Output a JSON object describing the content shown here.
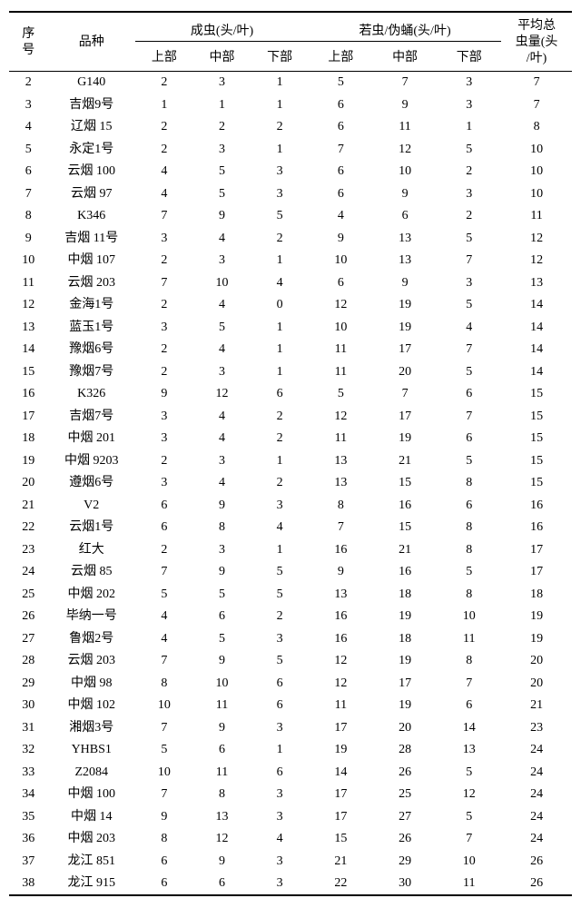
{
  "table": {
    "headers": {
      "idx": "序\n号",
      "variety": "品种",
      "group1": "成虫(头/叶)",
      "group2": "若虫/伪蛹(头/叶)",
      "avg": "平均总\n虫量(头\n/叶)",
      "sub_upper": "上部",
      "sub_mid": "中部",
      "sub_lower": "下部"
    },
    "rows": [
      {
        "i": "2",
        "v": "G140",
        "a1": "2",
        "a2": "3",
        "a3": "1",
        "b1": "5",
        "b2": "7",
        "b3": "3",
        "avg": "7"
      },
      {
        "i": "3",
        "v": "吉烟9号",
        "a1": "1",
        "a2": "1",
        "a3": "1",
        "b1": "6",
        "b2": "9",
        "b3": "3",
        "avg": "7"
      },
      {
        "i": "4",
        "v": "辽烟 15",
        "a1": "2",
        "a2": "2",
        "a3": "2",
        "b1": "6",
        "b2": "11",
        "b3": "1",
        "avg": "8"
      },
      {
        "i": "5",
        "v": "永定1号",
        "a1": "2",
        "a2": "3",
        "a3": "1",
        "b1": "7",
        "b2": "12",
        "b3": "5",
        "avg": "10"
      },
      {
        "i": "6",
        "v": "云烟 100",
        "a1": "4",
        "a2": "5",
        "a3": "3",
        "b1": "6",
        "b2": "10",
        "b3": "2",
        "avg": "10"
      },
      {
        "i": "7",
        "v": "云烟 97",
        "a1": "4",
        "a2": "5",
        "a3": "3",
        "b1": "6",
        "b2": "9",
        "b3": "3",
        "avg": "10"
      },
      {
        "i": "8",
        "v": "K346",
        "a1": "7",
        "a2": "9",
        "a3": "5",
        "b1": "4",
        "b2": "6",
        "b3": "2",
        "avg": "11"
      },
      {
        "i": "9",
        "v": "吉烟 11号",
        "a1": "3",
        "a2": "4",
        "a3": "2",
        "b1": "9",
        "b2": "13",
        "b3": "5",
        "avg": "12"
      },
      {
        "i": "10",
        "v": "中烟 107",
        "a1": "2",
        "a2": "3",
        "a3": "1",
        "b1": "10",
        "b2": "13",
        "b3": "7",
        "avg": "12"
      },
      {
        "i": "11",
        "v": "云烟 203",
        "a1": "7",
        "a2": "10",
        "a3": "4",
        "b1": "6",
        "b2": "9",
        "b3": "3",
        "avg": "13"
      },
      {
        "i": "12",
        "v": "金海1号",
        "a1": "2",
        "a2": "4",
        "a3": "0",
        "b1": "12",
        "b2": "19",
        "b3": "5",
        "avg": "14"
      },
      {
        "i": "13",
        "v": "蓝玉1号",
        "a1": "3",
        "a2": "5",
        "a3": "1",
        "b1": "10",
        "b2": "19",
        "b3": "4",
        "avg": "14"
      },
      {
        "i": "14",
        "v": "豫烟6号",
        "a1": "2",
        "a2": "4",
        "a3": "1",
        "b1": "11",
        "b2": "17",
        "b3": "7",
        "avg": "14"
      },
      {
        "i": "15",
        "v": "豫烟7号",
        "a1": "2",
        "a2": "3",
        "a3": "1",
        "b1": "11",
        "b2": "20",
        "b3": "5",
        "avg": "14"
      },
      {
        "i": "16",
        "v": "K326",
        "a1": "9",
        "a2": "12",
        "a3": "6",
        "b1": "5",
        "b2": "7",
        "b3": "6",
        "avg": "15"
      },
      {
        "i": "17",
        "v": "吉烟7号",
        "a1": "3",
        "a2": "4",
        "a3": "2",
        "b1": "12",
        "b2": "17",
        "b3": "7",
        "avg": "15"
      },
      {
        "i": "18",
        "v": "中烟 201",
        "a1": "3",
        "a2": "4",
        "a3": "2",
        "b1": "11",
        "b2": "19",
        "b3": "6",
        "avg": "15"
      },
      {
        "i": "19",
        "v": "中烟 9203",
        "a1": "2",
        "a2": "3",
        "a3": "1",
        "b1": "13",
        "b2": "21",
        "b3": "5",
        "avg": "15"
      },
      {
        "i": "20",
        "v": "遵烟6号",
        "a1": "3",
        "a2": "4",
        "a3": "2",
        "b1": "13",
        "b2": "15",
        "b3": "8",
        "avg": "15"
      },
      {
        "i": "21",
        "v": "V2",
        "a1": "6",
        "a2": "9",
        "a3": "3",
        "b1": "8",
        "b2": "16",
        "b3": "6",
        "avg": "16"
      },
      {
        "i": "22",
        "v": "云烟1号",
        "a1": "6",
        "a2": "8",
        "a3": "4",
        "b1": "7",
        "b2": "15",
        "b3": "8",
        "avg": "16"
      },
      {
        "i": "23",
        "v": "红大",
        "a1": "2",
        "a2": "3",
        "a3": "1",
        "b1": "16",
        "b2": "21",
        "b3": "8",
        "avg": "17"
      },
      {
        "i": "24",
        "v": "云烟 85",
        "a1": "7",
        "a2": "9",
        "a3": "5",
        "b1": "9",
        "b2": "16",
        "b3": "5",
        "avg": "17"
      },
      {
        "i": "25",
        "v": "中烟 202",
        "a1": "5",
        "a2": "5",
        "a3": "5",
        "b1": "13",
        "b2": "18",
        "b3": "8",
        "avg": "18"
      },
      {
        "i": "26",
        "v": "毕纳一号",
        "a1": "4",
        "a2": "6",
        "a3": "2",
        "b1": "16",
        "b2": "19",
        "b3": "10",
        "avg": "19"
      },
      {
        "i": "27",
        "v": "鲁烟2号",
        "a1": "4",
        "a2": "5",
        "a3": "3",
        "b1": "16",
        "b2": "18",
        "b3": "11",
        "avg": "19"
      },
      {
        "i": "28",
        "v": "云烟 203",
        "a1": "7",
        "a2": "9",
        "a3": "5",
        "b1": "12",
        "b2": "19",
        "b3": "8",
        "avg": "20"
      },
      {
        "i": "29",
        "v": "中烟 98",
        "a1": "8",
        "a2": "10",
        "a3": "6",
        "b1": "12",
        "b2": "17",
        "b3": "7",
        "avg": "20"
      },
      {
        "i": "30",
        "v": "中烟 102",
        "a1": "10",
        "a2": "11",
        "a3": "6",
        "b1": "11",
        "b2": "19",
        "b3": "6",
        "avg": "21"
      },
      {
        "i": "31",
        "v": "湘烟3号",
        "a1": "7",
        "a2": "9",
        "a3": "3",
        "b1": "17",
        "b2": "20",
        "b3": "14",
        "avg": "23"
      },
      {
        "i": "32",
        "v": "YHBS1",
        "a1": "5",
        "a2": "6",
        "a3": "1",
        "b1": "19",
        "b2": "28",
        "b3": "13",
        "avg": "24"
      },
      {
        "i": "33",
        "v": "Z2084",
        "a1": "10",
        "a2": "11",
        "a3": "6",
        "b1": "14",
        "b2": "26",
        "b3": "5",
        "avg": "24"
      },
      {
        "i": "34",
        "v": "中烟 100",
        "a1": "7",
        "a2": "8",
        "a3": "3",
        "b1": "17",
        "b2": "25",
        "b3": "12",
        "avg": "24"
      },
      {
        "i": "35",
        "v": "中烟 14",
        "a1": "9",
        "a2": "13",
        "a3": "3",
        "b1": "17",
        "b2": "27",
        "b3": "5",
        "avg": "24"
      },
      {
        "i": "36",
        "v": "中烟 203",
        "a1": "8",
        "a2": "12",
        "a3": "4",
        "b1": "15",
        "b2": "26",
        "b3": "7",
        "avg": "24"
      },
      {
        "i": "37",
        "v": "龙江 851",
        "a1": "6",
        "a2": "9",
        "a3": "3",
        "b1": "21",
        "b2": "29",
        "b3": "10",
        "avg": "26"
      },
      {
        "i": "38",
        "v": "龙江 915",
        "a1": "6",
        "a2": "6",
        "a3": "3",
        "b1": "22",
        "b2": "30",
        "b3": "11",
        "avg": "26"
      }
    ]
  },
  "colors": {
    "text": "#000000",
    "bg": "#ffffff"
  }
}
